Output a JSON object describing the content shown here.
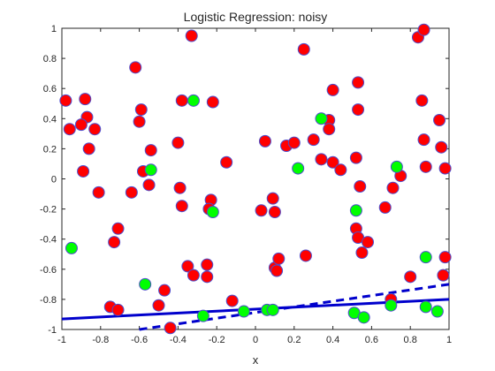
{
  "chart_data": {
    "type": "scatter",
    "title": "Logistic Regression: noisy",
    "xlabel": "x",
    "ylabel": "",
    "xlim": [
      -1,
      1
    ],
    "ylim": [
      -1,
      1
    ],
    "xticks": [
      -1,
      -0.8,
      -0.6,
      -0.4,
      -0.2,
      0,
      0.2,
      0.4,
      0.6,
      0.8,
      1
    ],
    "yticks": [
      -1,
      -0.8,
      -0.6,
      -0.4,
      -0.2,
      0,
      0.2,
      0.4,
      0.6,
      0.8,
      1
    ],
    "tick_labels_x": [
      "-1",
      "-0.8",
      "-0.6",
      "-0.4",
      "-0.2",
      "0",
      "0.2",
      "0.4",
      "0.6",
      "0.8",
      "1"
    ],
    "tick_labels_y": [
      "-1",
      "-0.8",
      "-0.6",
      "-0.4",
      "-0.2",
      "0",
      "0.2",
      "0.4",
      "0.6",
      "0.8",
      "1"
    ],
    "grid": false,
    "colors": {
      "red_points": "#ff0000",
      "green_points": "#00ff00",
      "marker_edge": "#4d4dcc",
      "line": "#0000cc",
      "axes": "#262626"
    },
    "series": [
      {
        "marker": "circle",
        "color": "#ff0000",
        "points": [
          [
            -0.98,
            0.52
          ],
          [
            -0.96,
            0.33
          ],
          [
            -0.88,
            0.53
          ],
          [
            -0.87,
            0.41
          ],
          [
            -0.86,
            0.2
          ],
          [
            -0.9,
            0.36
          ],
          [
            -0.89,
            0.05
          ],
          [
            -0.83,
            0.33
          ],
          [
            -0.81,
            -0.09
          ],
          [
            -0.71,
            -0.33
          ],
          [
            -0.73,
            -0.42
          ],
          [
            -0.75,
            -0.85
          ],
          [
            -0.71,
            -0.87
          ],
          [
            -0.64,
            -0.09
          ],
          [
            -0.62,
            0.74
          ],
          [
            -0.6,
            0.38
          ],
          [
            -0.59,
            0.46
          ],
          [
            -0.58,
            0.05
          ],
          [
            -0.54,
            0.19
          ],
          [
            -0.55,
            -0.04
          ],
          [
            -0.5,
            -0.84
          ],
          [
            -0.47,
            -0.74
          ],
          [
            -0.44,
            -0.99
          ],
          [
            -0.4,
            0.24
          ],
          [
            -0.39,
            -0.06
          ],
          [
            -0.38,
            -0.18
          ],
          [
            -0.38,
            0.52
          ],
          [
            -0.35,
            -0.58
          ],
          [
            -0.33,
            0.95
          ],
          [
            -0.32,
            -0.64
          ],
          [
            -0.25,
            -0.57
          ],
          [
            -0.25,
            -0.65
          ],
          [
            -0.23,
            -0.14
          ],
          [
            -0.24,
            -0.2
          ],
          [
            -0.22,
            0.51
          ],
          [
            -0.15,
            0.11
          ],
          [
            -0.12,
            -0.81
          ],
          [
            0.05,
            0.25
          ],
          [
            0.03,
            -0.21
          ],
          [
            0.09,
            -0.13
          ],
          [
            0.1,
            -0.22
          ],
          [
            0.1,
            -0.59
          ],
          [
            0.11,
            -0.61
          ],
          [
            0.12,
            -0.53
          ],
          [
            0.16,
            0.22
          ],
          [
            0.2,
            0.24
          ],
          [
            0.25,
            0.86
          ],
          [
            0.26,
            -0.51
          ],
          [
            0.3,
            0.26
          ],
          [
            0.34,
            0.13
          ],
          [
            0.38,
            0.39
          ],
          [
            0.38,
            0.33
          ],
          [
            0.4,
            0.11
          ],
          [
            0.4,
            0.59
          ],
          [
            0.44,
            0.06
          ],
          [
            0.53,
            0.64
          ],
          [
            0.53,
            0.46
          ],
          [
            0.52,
            0.14
          ],
          [
            0.54,
            -0.05
          ],
          [
            0.52,
            -0.33
          ],
          [
            0.53,
            -0.39
          ],
          [
            0.55,
            -0.49
          ],
          [
            0.58,
            -0.42
          ],
          [
            0.67,
            -0.19
          ],
          [
            0.7,
            -0.8
          ],
          [
            0.71,
            -0.06
          ],
          [
            0.75,
            0.02
          ],
          [
            0.8,
            -0.65
          ],
          [
            0.84,
            0.94
          ],
          [
            0.87,
            0.99
          ],
          [
            0.86,
            0.52
          ],
          [
            0.87,
            0.26
          ],
          [
            0.88,
            0.08
          ],
          [
            0.95,
            0.39
          ],
          [
            0.96,
            0.21
          ],
          [
            0.98,
            0.07
          ],
          [
            0.98,
            -0.52
          ],
          [
            0.97,
            -0.64
          ]
        ]
      },
      {
        "marker": "circle",
        "color": "#00ff00",
        "points": [
          [
            -0.95,
            -0.46
          ],
          [
            -0.57,
            -0.7
          ],
          [
            -0.54,
            0.06
          ],
          [
            -0.32,
            0.52
          ],
          [
            -0.27,
            -0.91
          ],
          [
            -0.22,
            -0.22
          ],
          [
            -0.06,
            -0.88
          ],
          [
            0.06,
            -0.87
          ],
          [
            0.09,
            -0.87
          ],
          [
            0.22,
            0.07
          ],
          [
            0.34,
            0.4
          ],
          [
            0.52,
            -0.21
          ],
          [
            0.51,
            -0.89
          ],
          [
            0.56,
            -0.92
          ],
          [
            0.7,
            -0.84
          ],
          [
            0.73,
            0.08
          ],
          [
            0.88,
            -0.52
          ],
          [
            0.88,
            -0.85
          ],
          [
            0.94,
            -0.88
          ]
        ]
      }
    ],
    "lines": [
      {
        "style": "solid",
        "x": [
          -1,
          1
        ],
        "y": [
          -0.93,
          -0.8
        ]
      },
      {
        "style": "dashed",
        "x": [
          -0.6,
          1
        ],
        "y": [
          -1.0,
          -0.7
        ]
      }
    ]
  }
}
